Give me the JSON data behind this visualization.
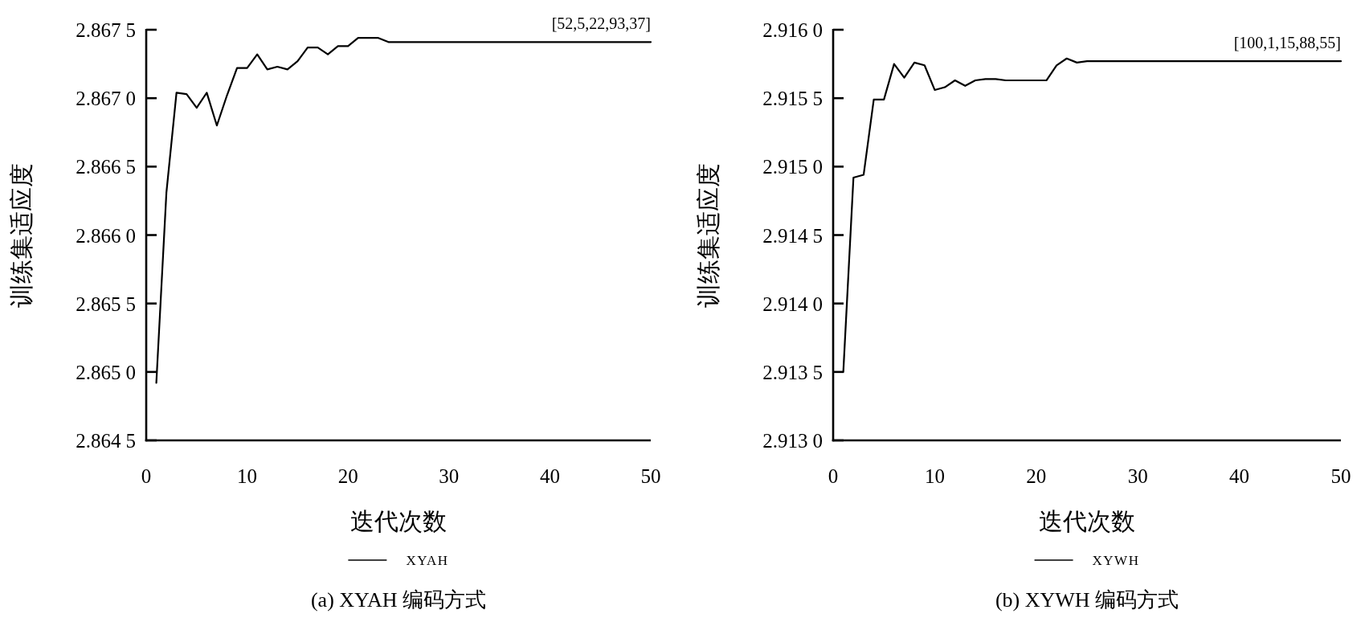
{
  "chart_data": [
    {
      "type": "line",
      "title": "(a) XYAH 编码方式",
      "xlabel": "迭代次数",
      "ylabel": "训练集适应度",
      "x": [
        1,
        2,
        3,
        4,
        5,
        6,
        7,
        8,
        9,
        10,
        11,
        12,
        13,
        14,
        15,
        16,
        17,
        18,
        19,
        20,
        21,
        22,
        23,
        24,
        25,
        26,
        27,
        28,
        29,
        30,
        31,
        32,
        33,
        34,
        35,
        36,
        37,
        38,
        39,
        40,
        41,
        42,
        43,
        44,
        45,
        46,
        47,
        48,
        49,
        50
      ],
      "series": [
        {
          "name": "XYAH",
          "color": "#000000",
          "values": [
            2.86492,
            2.86631,
            2.86704,
            2.86703,
            2.86693,
            2.86704,
            2.8668,
            2.86702,
            2.86722,
            2.86722,
            2.86732,
            2.86721,
            2.86723,
            2.86721,
            2.86727,
            2.86737,
            2.86737,
            2.86732,
            2.86738,
            2.86738,
            2.86744,
            2.86744,
            2.86744,
            2.86741,
            2.86741,
            2.86741,
            2.86741,
            2.86741,
            2.86741,
            2.86741,
            2.86741,
            2.86741,
            2.86741,
            2.86741,
            2.86741,
            2.86741,
            2.86741,
            2.86741,
            2.86741,
            2.86741,
            2.86741,
            2.86741,
            2.86741,
            2.86741,
            2.86741,
            2.86741,
            2.86741,
            2.86741,
            2.86741,
            2.86741
          ]
        }
      ],
      "xlim": [
        0,
        50
      ],
      "xticks": [
        0,
        10,
        20,
        30,
        40,
        50
      ],
      "ylim": [
        2.8645,
        2.8675
      ],
      "yticks": [
        2.8645,
        {
          "value": 2.865,
          "label": "2.8650"
        },
        2.8655,
        {
          "value": 2.866,
          "label": "2.8660"
        },
        2.8665,
        {
          "value": 2.867,
          "label": "2.8670"
        },
        2.8675
      ],
      "annotations": [
        {
          "text": "[52,5,22,93,37]",
          "x": 50,
          "y": 2.86741
        }
      ],
      "legend": "bottom",
      "line_style": "solid"
    },
    {
      "type": "line",
      "title": "(b) XYWH 编码方式",
      "xlabel": "迭代次数",
      "ylabel": "训练集适应度",
      "x": [
        1,
        2,
        3,
        4,
        5,
        6,
        7,
        8,
        9,
        10,
        11,
        12,
        13,
        14,
        15,
        16,
        17,
        18,
        19,
        20,
        21,
        22,
        23,
        24,
        25,
        26,
        27,
        28,
        29,
        30,
        31,
        32,
        33,
        34,
        35,
        36,
        37,
        38,
        39,
        40,
        41,
        42,
        43,
        44,
        45,
        46,
        47,
        48,
        49,
        50
      ],
      "series": [
        {
          "name": "XYWH",
          "color": "#000000",
          "values": [
            2.9135,
            2.91492,
            2.91494,
            2.91549,
            2.91549,
            2.91575,
            2.91565,
            2.91576,
            2.91574,
            2.91556,
            2.91558,
            2.91563,
            2.91559,
            2.91563,
            2.91564,
            2.91564,
            2.91563,
            2.91563,
            2.91563,
            2.91563,
            2.91563,
            2.91574,
            2.91579,
            2.91576,
            2.91577,
            2.91577,
            2.91577,
            2.91577,
            2.91577,
            2.91577,
            2.91577,
            2.91577,
            2.91577,
            2.91577,
            2.91577,
            2.91577,
            2.91577,
            2.91577,
            2.91577,
            2.91577,
            2.91577,
            2.91577,
            2.91577,
            2.91577,
            2.91577,
            2.91577,
            2.91577,
            2.91577,
            2.91577,
            2.91577
          ]
        }
      ],
      "xlim": [
        0,
        50
      ],
      "xticks": [
        0,
        10,
        20,
        30,
        40,
        50
      ],
      "ylim": [
        2.913,
        2.916
      ],
      "yticks": [
        {
          "value": 2.913,
          "label": "2.9130"
        },
        2.9135,
        {
          "value": 2.914,
          "label": "2.9140"
        },
        2.9145,
        {
          "value": 2.915,
          "label": "2.9150"
        },
        2.9155,
        {
          "value": 2.916,
          "label": "2.9160"
        }
      ],
      "annotations": [
        {
          "text": "[100,1,15,88,55]",
          "x": 50,
          "y": 2.91577
        }
      ],
      "legend": "bottom",
      "line_style": "solid"
    }
  ]
}
